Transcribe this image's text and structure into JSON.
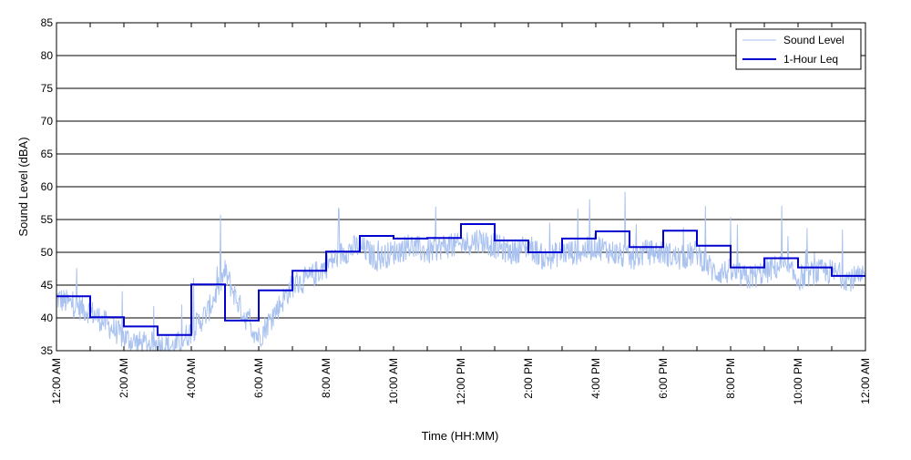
{
  "chart_data": {
    "type": "line",
    "title": "",
    "xlabel": "Time (HH:MM)",
    "ylabel": "Sound Level (dBA)",
    "ylim": [
      35,
      85
    ],
    "yticks": [
      "35",
      "40",
      "45",
      "50",
      "55",
      "60",
      "65",
      "70",
      "75",
      "80",
      "85"
    ],
    "xlim": [
      0,
      24
    ],
    "xticks": [
      {
        "hour": 0,
        "label": "12:00 AM"
      },
      {
        "hour": 2,
        "label": "2:00 AM"
      },
      {
        "hour": 4,
        "label": "4:00 AM"
      },
      {
        "hour": 6,
        "label": "6:00 AM"
      },
      {
        "hour": 8,
        "label": "8:00 AM"
      },
      {
        "hour": 10,
        "label": "10:00 AM"
      },
      {
        "hour": 12,
        "label": "12:00 PM"
      },
      {
        "hour": 14,
        "label": "2:00 PM"
      },
      {
        "hour": 16,
        "label": "4:00 PM"
      },
      {
        "hour": 18,
        "label": "6:00 PM"
      },
      {
        "hour": 20,
        "label": "8:00 PM"
      },
      {
        "hour": 22,
        "label": "10:00 PM"
      },
      {
        "hour": 24,
        "label": "12:00 AM"
      }
    ],
    "grid": "horizontal",
    "legend_position": "top-right",
    "series": [
      {
        "name": "Sound Level",
        "color": "#a9c2f0",
        "x": [
          0,
          0.5,
          1,
          1.5,
          2,
          2.5,
          3,
          3.5,
          4,
          4.5,
          5,
          5.5,
          6,
          6.5,
          7,
          7.5,
          8,
          8.5,
          9,
          9.5,
          10,
          10.5,
          11,
          11.5,
          12,
          12.5,
          13,
          13.5,
          14,
          14.5,
          15,
          15.5,
          16,
          16.5,
          17,
          17.5,
          18,
          18.5,
          19,
          19.5,
          20,
          20.5,
          21,
          21.5,
          22,
          22.5,
          23,
          23.5,
          24
        ],
        "y": [
          43,
          42,
          41,
          39,
          37,
          36,
          36,
          35.5,
          38,
          41,
          47,
          41,
          37,
          41,
          45,
          46,
          48,
          50,
          51,
          49,
          50,
          51,
          50,
          51,
          51,
          52,
          51,
          50,
          51,
          49,
          50,
          50,
          51,
          50,
          49,
          50,
          50,
          49,
          50,
          47,
          47,
          46,
          47,
          48,
          46,
          47,
          47,
          46,
          46
        ]
      },
      {
        "name": "1-Hour Leq",
        "color": "#0000d0",
        "step_values": [
          43.3,
          40.1,
          38.7,
          37.4,
          45.1,
          39.6,
          44.2,
          47.2,
          50.1,
          52.5,
          52.1,
          52.2,
          54.3,
          51.8,
          50.0,
          52.1,
          53.2,
          50.8,
          53.3,
          51.0,
          47.7,
          49.1,
          47.7,
          46.4
        ]
      }
    ]
  }
}
